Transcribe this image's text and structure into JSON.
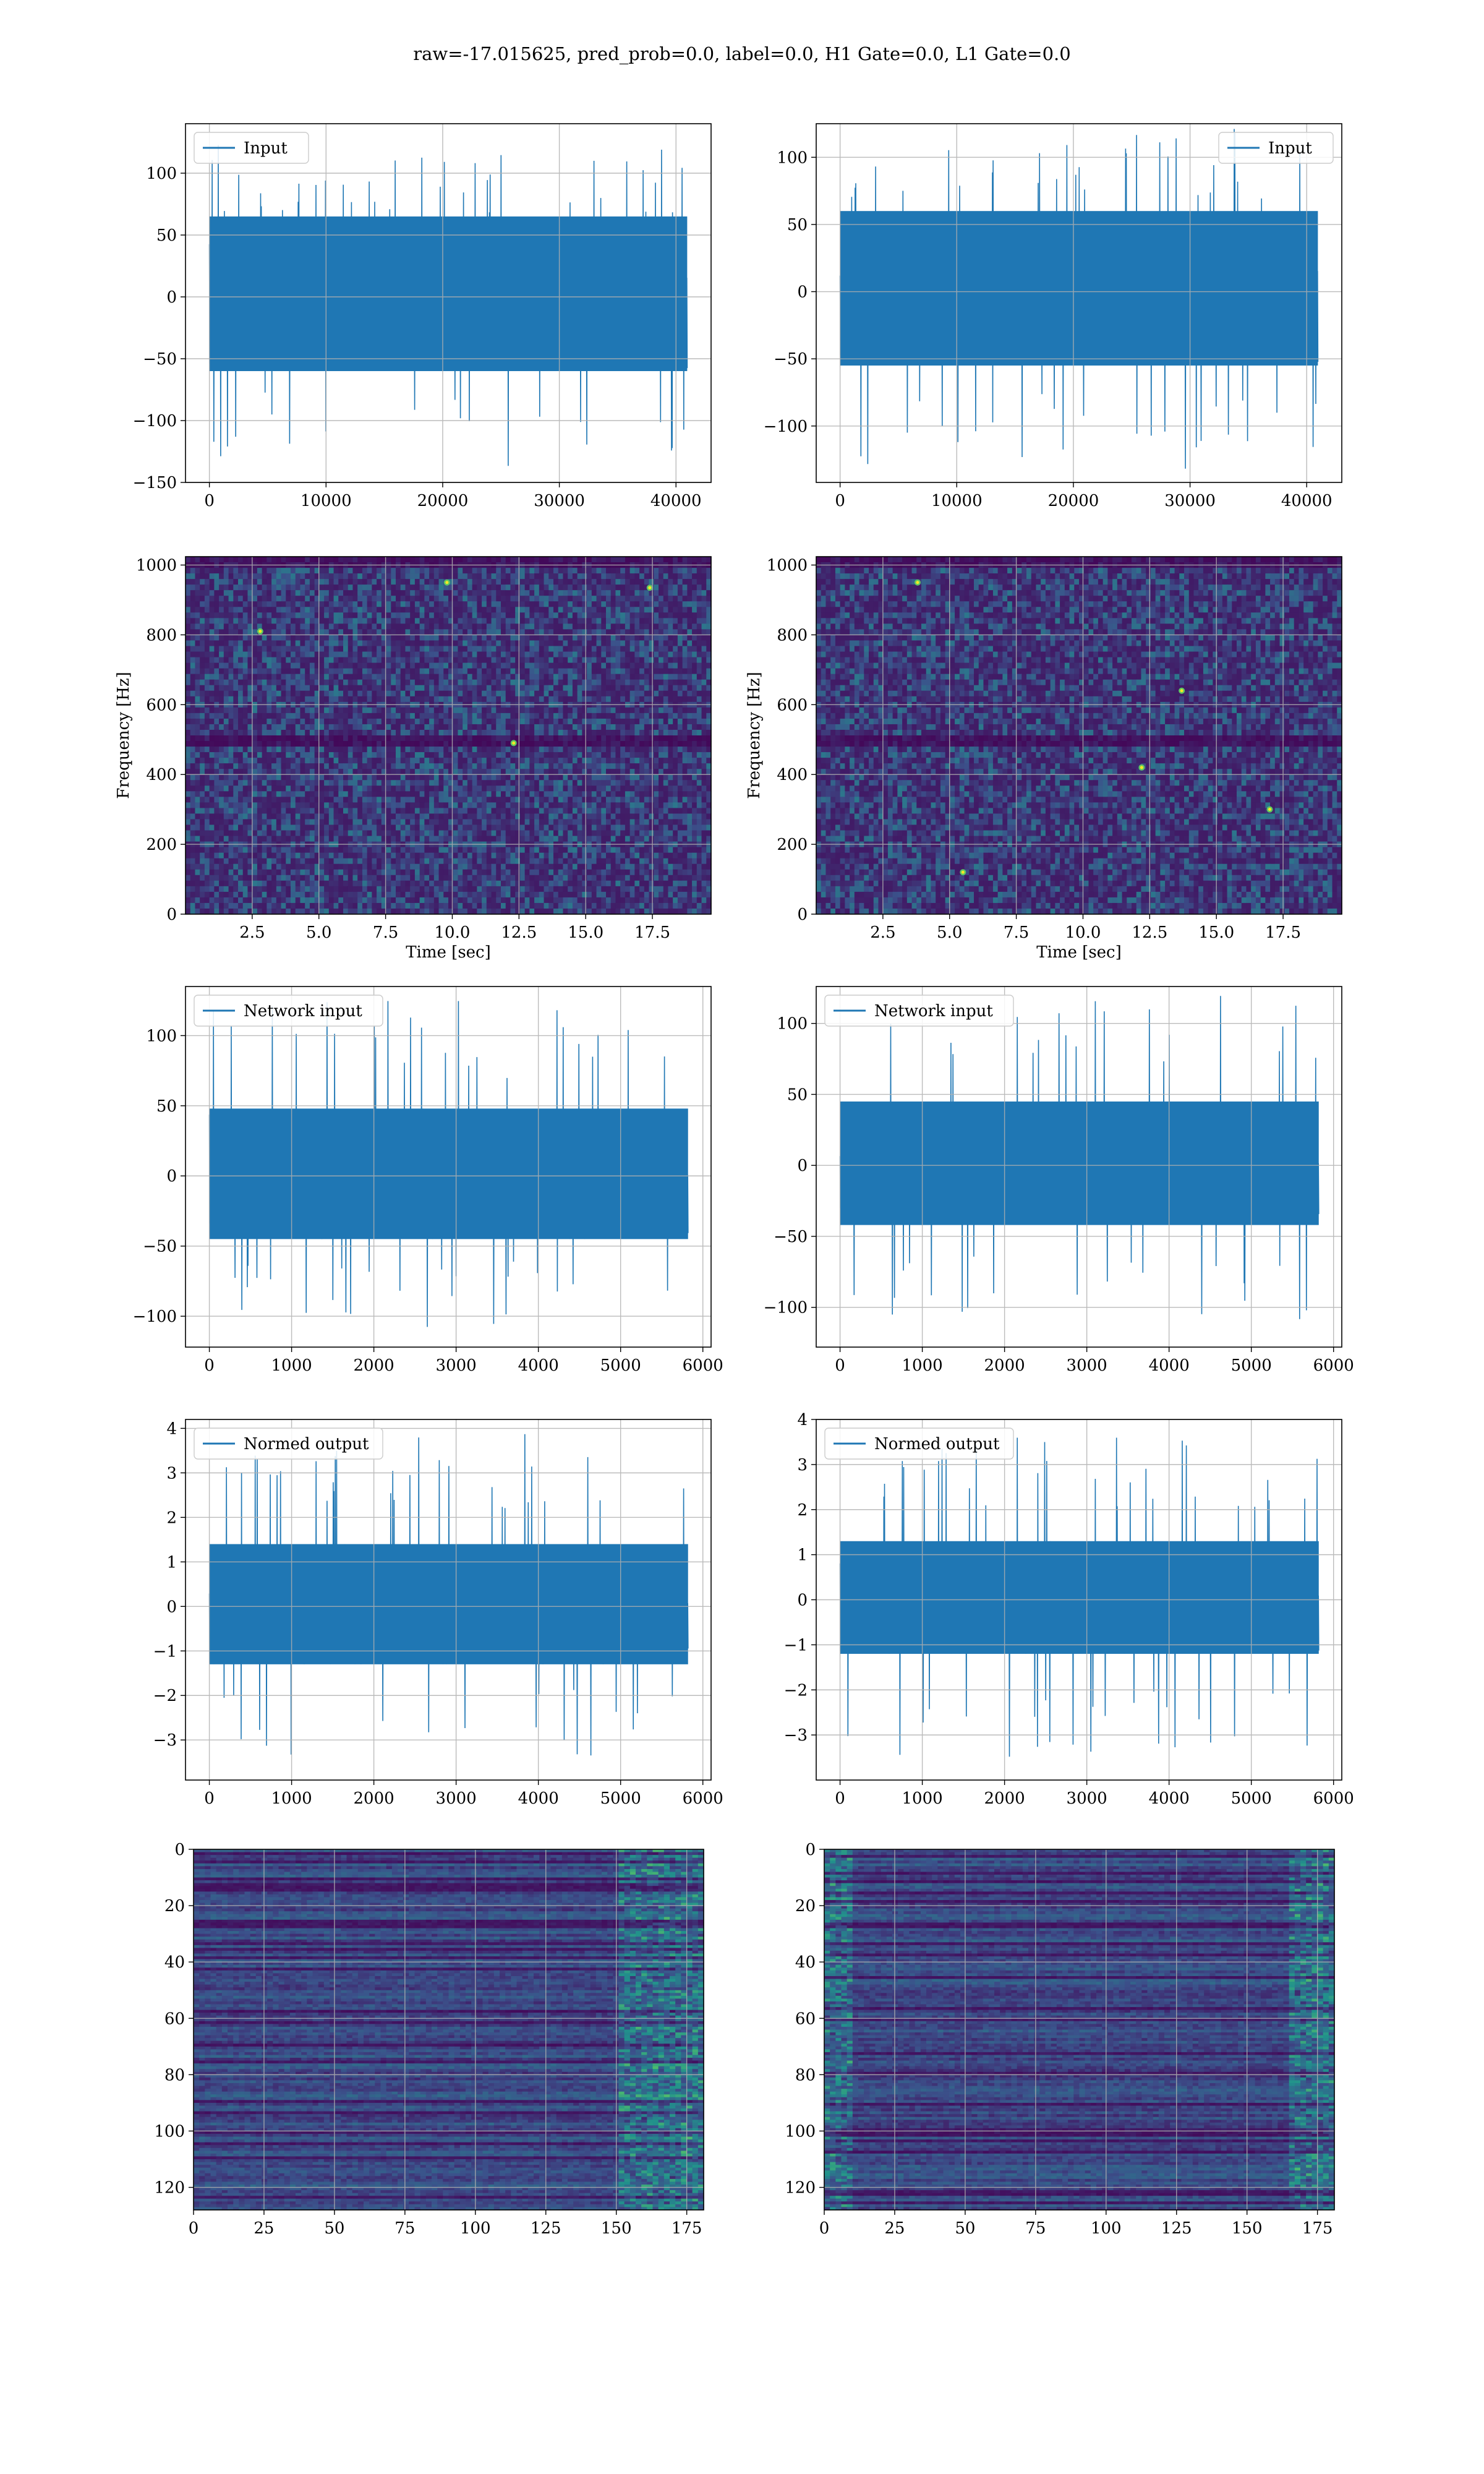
{
  "figure": {
    "title": "raw=-17.015625, pred_prob=0.0, label=0.0, H1 Gate=0.0, L1 Gate=0.0"
  },
  "colors": {
    "line": "#1f77b4",
    "grid": "#b0b0b0",
    "viridis_low": "#440154",
    "viridis_mid": "#3b528b",
    "viridis_teal": "#21918c",
    "viridis_green": "#5ec962",
    "viridis_high": "#fde725"
  },
  "chart_data": [
    {
      "id": "input_h1",
      "type": "line",
      "legend": "Input",
      "legend_position": "upper left",
      "grid": true,
      "xlim": [
        -2048,
        43008
      ],
      "ylim": [
        -150,
        140
      ],
      "xticks": [
        0,
        10000,
        20000,
        30000,
        40000
      ],
      "yticks": [
        -150,
        -100,
        -50,
        0,
        50,
        100
      ],
      "xticklabels": [
        "0",
        "10000",
        "20000",
        "30000",
        "40000"
      ],
      "yticklabels": [
        "−150",
        "−100",
        "−50",
        "0",
        "50",
        "100"
      ],
      "series": [
        {
          "name": "Input",
          "n_samples": 40960,
          "x_start": 0,
          "x_end": 40960,
          "band_low": -60,
          "band_high": 65,
          "min": -137,
          "max": 123
        }
      ]
    },
    {
      "id": "input_l1",
      "type": "line",
      "legend": "Input",
      "legend_position": "upper right",
      "grid": true,
      "xlim": [
        -2048,
        43008
      ],
      "ylim": [
        -142,
        125
      ],
      "xticks": [
        0,
        10000,
        20000,
        30000,
        40000
      ],
      "yticks": [
        -100,
        -50,
        0,
        50,
        100
      ],
      "xticklabels": [
        "0",
        "10000",
        "20000",
        "30000",
        "40000"
      ],
      "yticklabels": [
        "−100",
        "−50",
        "0",
        "50",
        "100"
      ],
      "series": [
        {
          "name": "Input",
          "n_samples": 40960,
          "x_start": 0,
          "x_end": 40960,
          "band_low": -55,
          "band_high": 60,
          "min": -133,
          "max": 122
        }
      ]
    },
    {
      "id": "spectrogram_h1",
      "type": "heatmap",
      "xlabel": "Time [sec]",
      "ylabel": "Frequency [Hz]",
      "grid": true,
      "xlim": [
        0,
        19.7
      ],
      "ylim": [
        0,
        1024
      ],
      "xticks": [
        2.5,
        5.0,
        7.5,
        10.0,
        12.5,
        15.0,
        17.5
      ],
      "yticks": [
        0,
        200,
        400,
        600,
        800,
        1000
      ],
      "xticklabels": [
        "2.5",
        "5.0",
        "7.5",
        "10.0",
        "12.5",
        "15.0",
        "17.5"
      ],
      "yticklabels": [
        "0",
        "200",
        "400",
        "600",
        "800",
        "1000"
      ],
      "colormap": "viridis",
      "dark_rows_hz": [
        500,
        1010
      ],
      "bright_spots": [
        [
          9.8,
          950
        ],
        [
          17.4,
          935
        ],
        [
          12.3,
          490
        ],
        [
          2.8,
          810
        ]
      ]
    },
    {
      "id": "spectrogram_l1",
      "type": "heatmap",
      "xlabel": "Time [sec]",
      "ylabel": "Frequency [Hz]",
      "grid": true,
      "xlim": [
        0,
        19.7
      ],
      "ylim": [
        0,
        1024
      ],
      "xticks": [
        2.5,
        5.0,
        7.5,
        10.0,
        12.5,
        15.0,
        17.5
      ],
      "yticks": [
        0,
        200,
        400,
        600,
        800,
        1000
      ],
      "xticklabels": [
        "2.5",
        "5.0",
        "7.5",
        "10.0",
        "12.5",
        "15.0",
        "17.5"
      ],
      "yticklabels": [
        "0",
        "200",
        "400",
        "600",
        "800",
        "1000"
      ],
      "colormap": "viridis",
      "dark_rows_hz": [
        500,
        1010
      ],
      "bright_spots": [
        [
          3.8,
          950
        ],
        [
          12.2,
          420
        ],
        [
          17.0,
          300
        ],
        [
          5.5,
          120
        ],
        [
          13.7,
          640
        ]
      ]
    },
    {
      "id": "network_input_h1",
      "type": "line",
      "legend": "Network input",
      "legend_position": "upper left",
      "grid": true,
      "xlim": [
        -290,
        6100
      ],
      "ylim": [
        -122,
        135
      ],
      "xticks": [
        0,
        1000,
        2000,
        3000,
        4000,
        5000,
        6000
      ],
      "yticks": [
        -100,
        -50,
        0,
        50,
        100
      ],
      "xticklabels": [
        "0",
        "1000",
        "2000",
        "3000",
        "4000",
        "5000",
        "6000"
      ],
      "yticklabels": [
        "−100",
        "−50",
        "0",
        "50",
        "100"
      ],
      "series": [
        {
          "name": "Network input",
          "n_samples": 5820,
          "x_start": 0,
          "x_end": 5820,
          "band_low": -45,
          "band_high": 48,
          "min": -108,
          "max": 125
        }
      ]
    },
    {
      "id": "network_input_l1",
      "type": "line",
      "legend": "Network input",
      "legend_position": "upper left",
      "grid": true,
      "xlim": [
        -290,
        6100
      ],
      "ylim": [
        -128,
        126
      ],
      "xticks": [
        0,
        1000,
        2000,
        3000,
        4000,
        5000,
        6000
      ],
      "yticks": [
        -100,
        -50,
        0,
        50,
        100
      ],
      "xticklabels": [
        "0",
        "1000",
        "2000",
        "3000",
        "4000",
        "5000",
        "6000"
      ],
      "yticklabels": [
        "−100",
        "−50",
        "0",
        "50",
        "100"
      ],
      "series": [
        {
          "name": "Network input",
          "n_samples": 5820,
          "x_start": 0,
          "x_end": 5820,
          "band_low": -42,
          "band_high": 45,
          "min": -115,
          "max": 120
        }
      ]
    },
    {
      "id": "normed_output_h1",
      "type": "line",
      "legend": "Normed output",
      "legend_position": "upper left",
      "grid": true,
      "xlim": [
        -290,
        6100
      ],
      "ylim": [
        -3.9,
        4.2
      ],
      "xticks": [
        0,
        1000,
        2000,
        3000,
        4000,
        5000,
        6000
      ],
      "yticks": [
        -3,
        -2,
        -1,
        0,
        1,
        2,
        3,
        4
      ],
      "xticklabels": [
        "0",
        "1000",
        "2000",
        "3000",
        "4000",
        "5000",
        "6000"
      ],
      "yticklabels": [
        "−3",
        "−2",
        "−1",
        "0",
        "1",
        "2",
        "3",
        "4"
      ],
      "series": [
        {
          "name": "Normed output",
          "n_samples": 5820,
          "x_start": 0,
          "x_end": 5820,
          "band_low": -1.3,
          "band_high": 1.4,
          "min": -3.4,
          "max": 3.9
        }
      ]
    },
    {
      "id": "normed_output_l1",
      "type": "line",
      "legend": "Normed output",
      "legend_position": "upper left",
      "grid": true,
      "xlim": [
        -290,
        6100
      ],
      "ylim": [
        -4.0,
        4.0
      ],
      "xticks": [
        0,
        1000,
        2000,
        3000,
        4000,
        5000,
        6000
      ],
      "yticks": [
        -3,
        -2,
        -1,
        0,
        1,
        2,
        3,
        4
      ],
      "xticklabels": [
        "0",
        "1000",
        "2000",
        "3000",
        "4000",
        "5000",
        "6000"
      ],
      "yticklabels": [
        "−3",
        "−2",
        "−1",
        "0",
        "1",
        "2",
        "3",
        "4"
      ],
      "series": [
        {
          "name": "Normed output",
          "n_samples": 5820,
          "x_start": 0,
          "x_end": 5820,
          "band_low": -1.2,
          "band_high": 1.3,
          "min": -3.6,
          "max": 3.7
        }
      ]
    },
    {
      "id": "feature_map_h1",
      "type": "heatmap",
      "grid": true,
      "xlim": [
        0,
        181
      ],
      "ylim": [
        128,
        0
      ],
      "rows": 128,
      "cols": 181,
      "xticks": [
        0,
        25,
        50,
        75,
        100,
        125,
        150,
        175
      ],
      "yticks": [
        0,
        20,
        40,
        60,
        80,
        100,
        120
      ],
      "xticklabels": [
        "0",
        "25",
        "50",
        "75",
        "100",
        "125",
        "150",
        "175"
      ],
      "yticklabels": [
        "0",
        "20",
        "40",
        "60",
        "80",
        "100",
        "120"
      ],
      "colormap": "viridis",
      "bright_region_cols": [
        150,
        181
      ]
    },
    {
      "id": "feature_map_l1",
      "type": "heatmap",
      "grid": true,
      "xlim": [
        0,
        181
      ],
      "ylim": [
        128,
        0
      ],
      "rows": 128,
      "cols": 181,
      "xticks": [
        0,
        25,
        50,
        75,
        100,
        125,
        150,
        175
      ],
      "yticks": [
        0,
        20,
        40,
        60,
        80,
        100,
        120
      ],
      "xticklabels": [
        "0",
        "25",
        "50",
        "75",
        "100",
        "125",
        "150",
        "175"
      ],
      "yticklabels": [
        "0",
        "20",
        "40",
        "60",
        "80",
        "100",
        "120"
      ],
      "colormap": "viridis",
      "bright_region_cols": [
        0,
        10,
        165,
        181
      ]
    }
  ]
}
